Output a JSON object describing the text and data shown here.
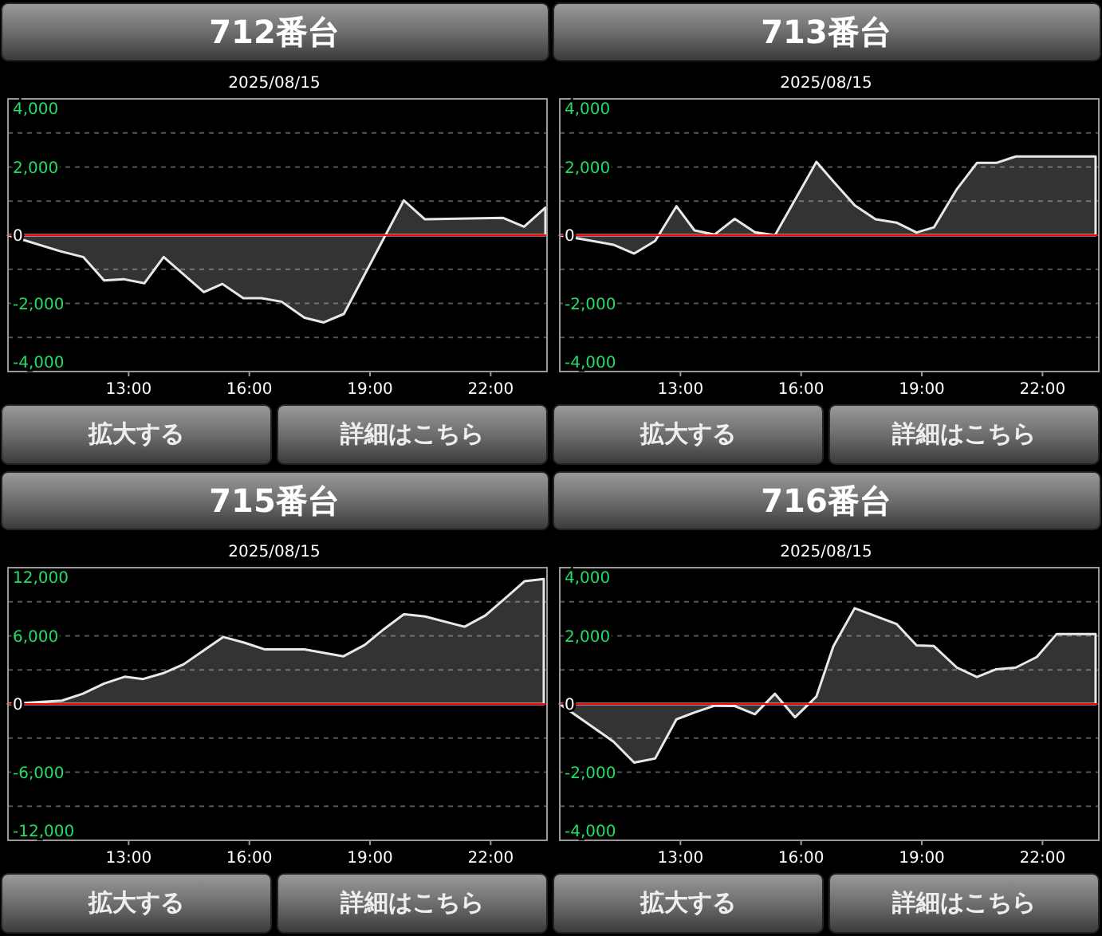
{
  "chart_data": [
    {
      "type": "area",
      "title": "712番台",
      "subtitle": "2025/08/15",
      "annotations": [
        "拡大する",
        "詳細はこちら"
      ],
      "series": [
        {
          "color": "#e8e8e8",
          "x": [
            10,
            11.3,
            11.87,
            12.39,
            12.87,
            13.39,
            13.87,
            14.87,
            15.33,
            15.85,
            16.3,
            16.8,
            17.37,
            17.85,
            18.35,
            19.84,
            20.36,
            22.3,
            22.83,
            23.36
          ],
          "values": [
            0,
            -470,
            -640,
            -1330,
            -1290,
            -1410,
            -640,
            -1670,
            -1430,
            -1850,
            -1850,
            -1950,
            -2420,
            -2560,
            -2310,
            1020,
            470,
            510,
            250,
            810
          ]
        }
      ],
      "xlim": [
        10,
        23.4
      ],
      "xticks": [
        {
          "value": 13,
          "label": "13:00"
        },
        {
          "value": 16,
          "label": "16:00"
        },
        {
          "value": 19,
          "label": "19:00"
        },
        {
          "value": 22,
          "label": "22:00"
        }
      ],
      "ylim": [
        -4000,
        4000
      ],
      "yticks": [
        {
          "value": -4000,
          "label": "-4,000"
        },
        {
          "value": -3000,
          "label": null
        },
        {
          "value": -2000,
          "label": "-2,000"
        },
        {
          "value": -1000,
          "label": null
        },
        {
          "value": 0,
          "label": "0"
        },
        {
          "value": 1000,
          "label": null
        },
        {
          "value": 2000,
          "label": "2,000"
        },
        {
          "value": 3000,
          "label": null
        },
        {
          "value": 4000,
          "label": "4,000"
        }
      ],
      "grid": "y",
      "ref_lines": [
        {
          "axis": "y",
          "value": 0,
          "color": "#ff0000"
        }
      ]
    },
    {
      "type": "area",
      "title": "713番台",
      "subtitle": "2025/08/15",
      "annotations": [
        "拡大する",
        "詳細はこちら"
      ],
      "series": [
        {
          "color": "#e8e8e8",
          "x": [
            10,
            11.33,
            11.85,
            12.37,
            12.9,
            13.35,
            13.85,
            14.35,
            14.85,
            15.35,
            16.38,
            16.8,
            17.33,
            17.85,
            18.37,
            18.87,
            19.3,
            19.87,
            20.37,
            20.85,
            21.34,
            23.32
          ],
          "values": [
            0,
            -280,
            -540,
            -170,
            850,
            140,
            20,
            480,
            90,
            0,
            2150,
            1580,
            880,
            470,
            370,
            80,
            230,
            1350,
            2120,
            2120,
            2310,
            2310
          ]
        }
      ],
      "xlim": [
        10,
        23.4
      ],
      "xticks": [
        {
          "value": 13,
          "label": "13:00"
        },
        {
          "value": 16,
          "label": "16:00"
        },
        {
          "value": 19,
          "label": "19:00"
        },
        {
          "value": 22,
          "label": "22:00"
        }
      ],
      "ylim": [
        -4000,
        4000
      ],
      "yticks": [
        {
          "value": -4000,
          "label": "-4,000"
        },
        {
          "value": -3000,
          "label": null
        },
        {
          "value": -2000,
          "label": "-2,000"
        },
        {
          "value": -1000,
          "label": null
        },
        {
          "value": 0,
          "label": "0"
        },
        {
          "value": 1000,
          "label": null
        },
        {
          "value": 2000,
          "label": "2,000"
        },
        {
          "value": 3000,
          "label": null
        },
        {
          "value": 4000,
          "label": "4,000"
        }
      ],
      "grid": "y",
      "ref_lines": [
        {
          "axis": "y",
          "value": 0,
          "color": "#ff0000"
        }
      ]
    },
    {
      "type": "area",
      "title": "715番台",
      "subtitle": "2025/08/15",
      "annotations": [
        "拡大する",
        "詳細はこちら"
      ],
      "series": [
        {
          "color": "#e8e8e8",
          "x": [
            10,
            11.34,
            11.86,
            12.39,
            12.9,
            13.36,
            13.85,
            14.37,
            14.86,
            15.35,
            15.87,
            16.39,
            17.37,
            18.34,
            18.87,
            19.35,
            19.84,
            20.37,
            21.35,
            21.87,
            22.39,
            22.84,
            23.32
          ],
          "values": [
            0,
            300,
            900,
            1800,
            2400,
            2200,
            2700,
            3500,
            4700,
            5900,
            5400,
            4800,
            4800,
            4200,
            5200,
            6600,
            7900,
            7700,
            6800,
            7800,
            9400,
            10800,
            11000
          ]
        }
      ],
      "xlim": [
        10,
        23.4
      ],
      "xticks": [
        {
          "value": 13,
          "label": "13:00"
        },
        {
          "value": 16,
          "label": "16:00"
        },
        {
          "value": 19,
          "label": "19:00"
        },
        {
          "value": 22,
          "label": "22:00"
        }
      ],
      "ylim": [
        -12000,
        12000
      ],
      "yticks": [
        {
          "value": -12000,
          "label": "-12,000"
        },
        {
          "value": -9000,
          "label": null
        },
        {
          "value": -6000,
          "label": "-6,000"
        },
        {
          "value": -3000,
          "label": null
        },
        {
          "value": 0,
          "label": "0"
        },
        {
          "value": 3000,
          "label": null
        },
        {
          "value": 6000,
          "label": "6,000"
        },
        {
          "value": 9000,
          "label": null
        },
        {
          "value": 12000,
          "label": "12,000"
        }
      ],
      "grid": "y",
      "ref_lines": [
        {
          "axis": "y",
          "value": 0,
          "color": "#ff0000"
        }
      ]
    },
    {
      "type": "area",
      "title": "716番台",
      "subtitle": "2025/08/15",
      "annotations": [
        "拡大する",
        "詳細はこちら"
      ],
      "series": [
        {
          "color": "#e8e8e8",
          "x": [
            10,
            11.33,
            11.85,
            12.37,
            12.9,
            13.35,
            13.85,
            14.35,
            14.85,
            15.35,
            15.85,
            16.38,
            16.8,
            17.33,
            18.37,
            18.87,
            19.3,
            19.87,
            20.37,
            20.85,
            21.34,
            21.86,
            22.35,
            23.32
          ],
          "values": [
            0,
            -1100,
            -1720,
            -1600,
            -450,
            -250,
            -50,
            -60,
            -300,
            300,
            -390,
            220,
            1690,
            2810,
            2350,
            1720,
            1700,
            1070,
            790,
            1020,
            1070,
            1380,
            2050,
            2050
          ]
        }
      ],
      "xlim": [
        10,
        23.4
      ],
      "xticks": [
        {
          "value": 13,
          "label": "13:00"
        },
        {
          "value": 16,
          "label": "16:00"
        },
        {
          "value": 19,
          "label": "19:00"
        },
        {
          "value": 22,
          "label": "22:00"
        }
      ],
      "ylim": [
        -4000,
        4000
      ],
      "yticks": [
        {
          "value": -4000,
          "label": "-4,000"
        },
        {
          "value": -3000,
          "label": null
        },
        {
          "value": -2000,
          "label": "-2,000"
        },
        {
          "value": -1000,
          "label": null
        },
        {
          "value": 0,
          "label": "0"
        },
        {
          "value": 1000,
          "label": null
        },
        {
          "value": 2000,
          "label": "2,000"
        },
        {
          "value": 3000,
          "label": null
        },
        {
          "value": 4000,
          "label": "4,000"
        }
      ],
      "grid": "y",
      "ref_lines": [
        {
          "axis": "y",
          "value": 0,
          "color": "#ff0000"
        }
      ]
    }
  ]
}
